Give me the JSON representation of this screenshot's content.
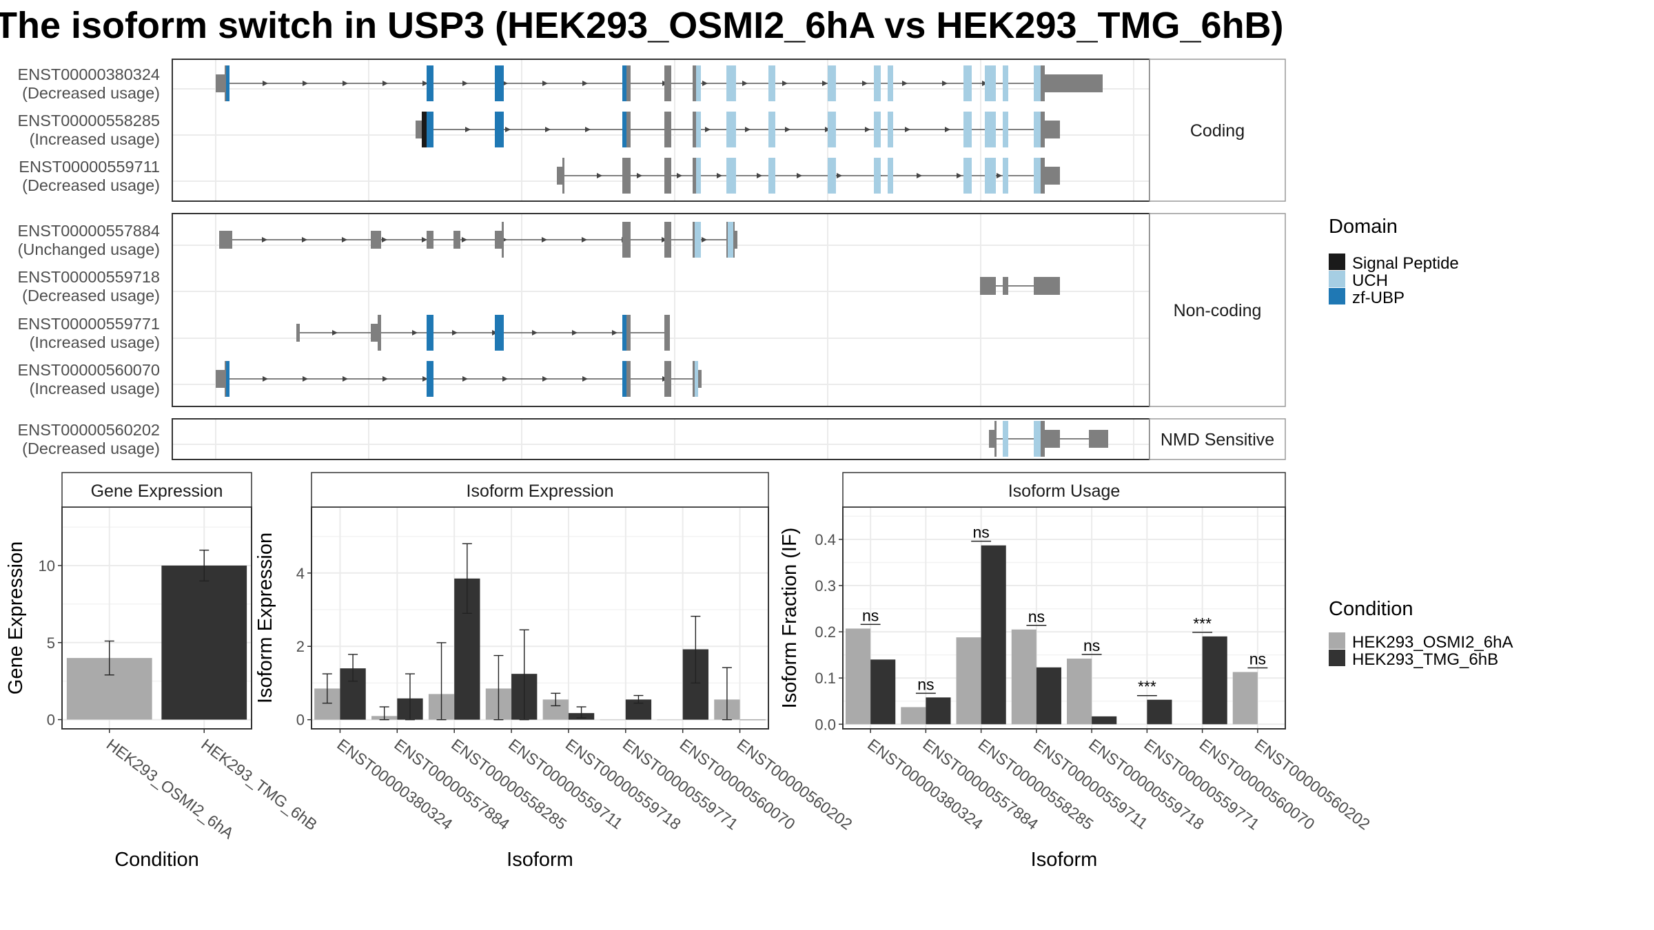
{
  "title": "The isoform switch in USP3 (HEK293_OSMI2_6hA vs HEK293_TMG_6hB)",
  "colors": {
    "exon": "#7f7f7f",
    "signal_peptide": "#1a1a1a",
    "uch": "#a6cee3",
    "zf_ubp": "#1f78b4",
    "condition_a": "#aaaaaa",
    "condition_b": "#333333"
  },
  "structure": {
    "panels": [
      {
        "label": "Coding",
        "transcripts": [
          {
            "id": "ENST00000380324",
            "usage": "(Decreased usage)"
          },
          {
            "id": "ENST00000558285",
            "usage": "(Increased usage)"
          },
          {
            "id": "ENST00000559711",
            "usage": "(Decreased usage)"
          }
        ]
      },
      {
        "label": "Non-coding",
        "transcripts": [
          {
            "id": "ENST00000557884",
            "usage": "(Unchanged usage)"
          },
          {
            "id": "ENST00000559718",
            "usage": "(Decreased usage)"
          },
          {
            "id": "ENST00000559771",
            "usage": "(Increased usage)"
          },
          {
            "id": "ENST00000560070",
            "usage": "(Increased usage)"
          }
        ]
      },
      {
        "label": "NMD Sensitive",
        "transcripts": [
          {
            "id": "ENST00000560202",
            "usage": "(Decreased usage)"
          }
        ]
      }
    ]
  },
  "legend_domain": {
    "title": "Domain",
    "items": [
      {
        "label": "Signal Peptide",
        "color": "#1a1a1a"
      },
      {
        "label": "UCH",
        "color": "#a6cee3"
      },
      {
        "label": "zf-UBP",
        "color": "#1f78b4"
      }
    ]
  },
  "legend_condition": {
    "title": "Condition",
    "items": [
      {
        "label": "HEK293_OSMI2_6hA",
        "color": "#aaaaaa"
      },
      {
        "label": "HEK293_TMG_6hB",
        "color": "#333333"
      }
    ]
  },
  "chart_data": [
    {
      "type": "bar",
      "title": "Gene Expression",
      "xlabel": "Condition",
      "ylabel": "Gene Expression",
      "categories": [
        "HEK293_OSMI2_6hA",
        "HEK293_TMG_6hB"
      ],
      "values": [
        4.0,
        10.0
      ],
      "error_low": [
        2.9,
        9.0
      ],
      "error_high": [
        5.1,
        11.0
      ],
      "ylim": [
        -0.6,
        13.8
      ],
      "yticks": [
        0,
        5,
        10
      ]
    },
    {
      "type": "bar",
      "title": "Isoform Expression",
      "xlabel": "Isoform",
      "ylabel": "Isoform Expression",
      "categories": [
        "ENST00000380324",
        "ENST00000557884",
        "ENST00000558285",
        "ENST00000559711",
        "ENST00000559718",
        "ENST00000559771",
        "ENST00000560070",
        "ENST00000560202"
      ],
      "series": [
        {
          "name": "HEK293_OSMI2_6hA",
          "values": [
            0.85,
            0.1,
            0.7,
            0.85,
            0.55,
            0.0,
            0.0,
            0.55
          ],
          "error_low": [
            0.45,
            0.0,
            0.0,
            0.0,
            0.38,
            0.0,
            0.0,
            0.0
          ],
          "error_high": [
            1.25,
            0.35,
            2.1,
            1.75,
            0.72,
            0.0,
            0.0,
            1.42
          ]
        },
        {
          "name": "HEK293_TMG_6hB",
          "values": [
            1.4,
            0.58,
            3.85,
            1.25,
            0.18,
            0.55,
            1.92,
            0.0
          ],
          "error_low": [
            1.05,
            0.0,
            2.9,
            0.0,
            0.05,
            0.45,
            1.0,
            0.0
          ],
          "error_high": [
            1.78,
            1.25,
            4.8,
            2.45,
            0.35,
            0.66,
            2.82,
            0.0
          ]
        }
      ],
      "ylim": [
        -0.25,
        5.8
      ],
      "yticks": [
        0,
        2,
        4
      ]
    },
    {
      "type": "bar",
      "title": "Isoform Usage",
      "xlabel": "Isoform",
      "ylabel": "Isoform Fraction (IF)",
      "categories": [
        "ENST00000380324",
        "ENST00000557884",
        "ENST00000558285",
        "ENST00000559711",
        "ENST00000559718",
        "ENST00000559771",
        "ENST00000560070",
        "ENST00000560202"
      ],
      "series": [
        {
          "name": "HEK293_OSMI2_6hA",
          "values": [
            0.207,
            0.037,
            0.188,
            0.205,
            0.142,
            0.0,
            0.0,
            0.113
          ]
        },
        {
          "name": "HEK293_TMG_6hB",
          "values": [
            0.14,
            0.058,
            0.387,
            0.123,
            0.017,
            0.053,
            0.19,
            0.0
          ]
        }
      ],
      "significance": [
        "ns",
        "ns",
        "ns",
        "ns",
        "ns",
        "***",
        "***",
        "ns"
      ],
      "ylim": [
        -0.01,
        0.47
      ],
      "yticks": [
        0.0,
        0.1,
        0.2,
        0.3,
        0.4
      ]
    }
  ]
}
